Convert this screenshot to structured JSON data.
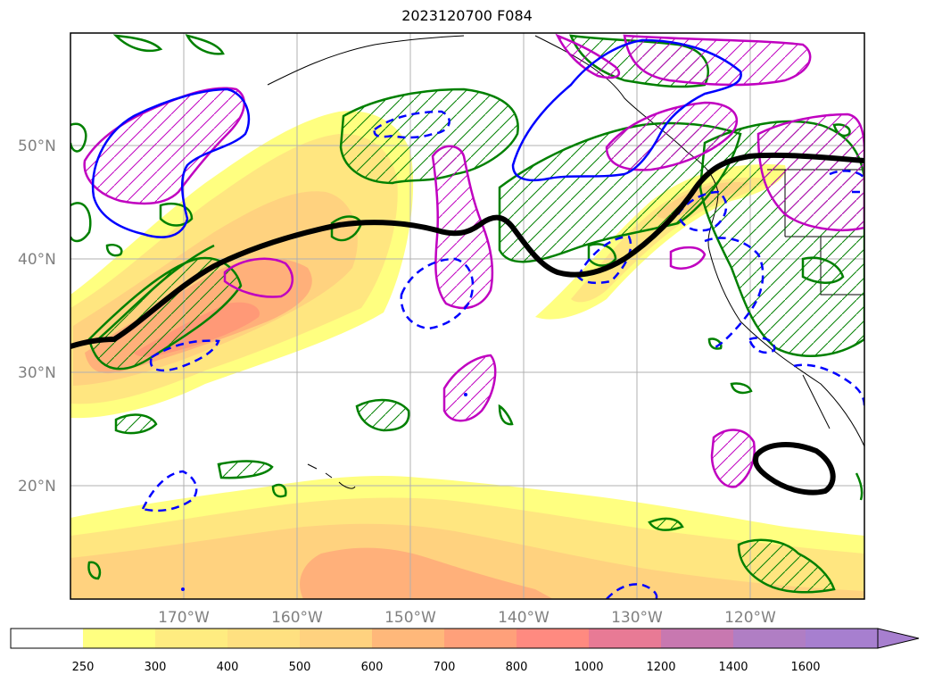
{
  "title": "2023120700 F084",
  "map": {
    "lat_labels": [
      "50°N",
      "40°N",
      "30°N",
      "20°N"
    ],
    "lon_labels": [
      "170°W",
      "160°W",
      "150°W",
      "140°W",
      "130°W",
      "120°W"
    ],
    "shading_colors": [
      "#ffff80",
      "#ffe680",
      "#ffd27f",
      "#ffb07a",
      "#ff9977",
      "#f08080"
    ],
    "line_colors": {
      "jet": "#000000",
      "positive_green": "#008000",
      "positive_magenta": "#c000c0",
      "blue_solid": "#0000ff",
      "blue_dashed": "#0000ff",
      "coast": "#000000"
    }
  },
  "colorbar": {
    "ticks": [
      "250",
      "300",
      "400",
      "500",
      "600",
      "700",
      "800",
      "1000",
      "1200",
      "1400",
      "1600"
    ],
    "colors": [
      "#ffffff",
      "#ffff80",
      "#ffec80",
      "#ffe080",
      "#ffd27f",
      "#ffb87a",
      "#ffa07a",
      "#ff8a80",
      "#e87a95",
      "#c878b0",
      "#b07ec4",
      "#a77fcf"
    ]
  }
}
